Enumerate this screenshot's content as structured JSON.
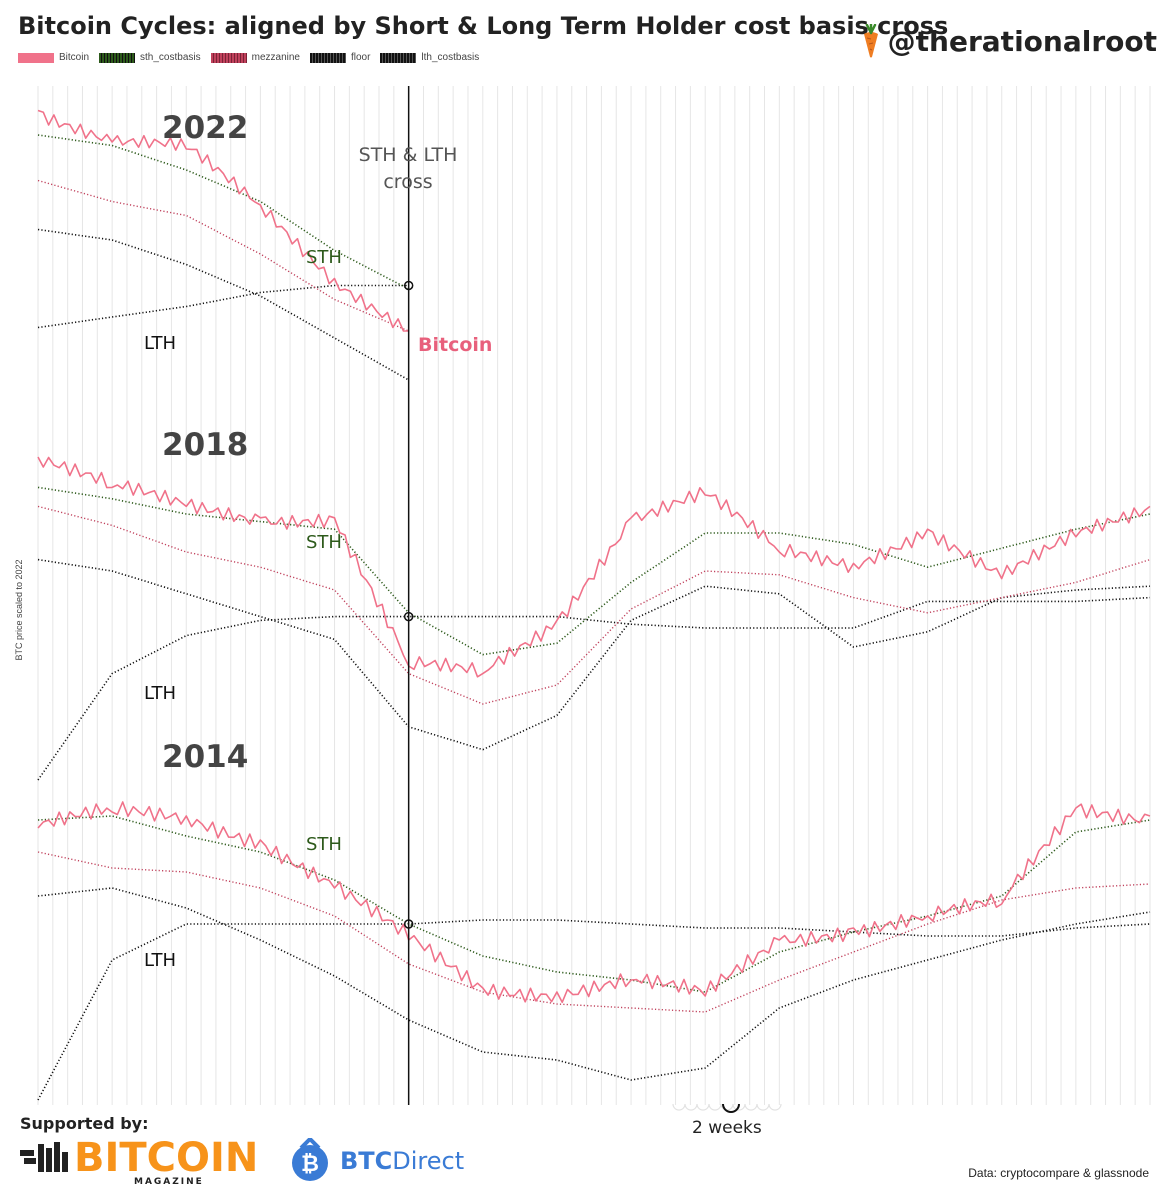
{
  "header": {
    "title": "Bitcoin Cycles: aligned by Short & Long Term Holder cost basis cross",
    "handle": "@therationalroot"
  },
  "legend": [
    {
      "label": "Bitcoin",
      "color": "#f0728a"
    },
    {
      "label": "sth_costbasis",
      "color": "#2d5a1b"
    },
    {
      "label": "mezzanine",
      "color": "#c0415c"
    },
    {
      "label": "floor",
      "color": "#111111"
    },
    {
      "label": "lth_costbasis",
      "color": "#111111"
    }
  ],
  "annotations": {
    "cross_label_line1": "STH & LTH",
    "cross_label_line2": "cross",
    "year_2022": "2022",
    "year_2018": "2018",
    "year_2014": "2014",
    "sth": "STH",
    "lth": "LTH",
    "bitcoin": "Bitcoin",
    "y_axis_label": "BTC price scaled to 2022",
    "grid_note": "2 weeks"
  },
  "footer": {
    "supported_by": "Supported by:",
    "sponsor1_big": "BITCOIN",
    "sponsor1_small": "MAGAZINE",
    "sponsor2_a": "BTC",
    "sponsor2_b": "Direct",
    "source": "Data: cryptocompare & glassnode"
  },
  "chart_data": {
    "type": "line",
    "title": "Bitcoin Cycles: aligned by Short & Long Term Holder cost basis cross",
    "ylabel": "BTC price scaled to 2022",
    "x_unit": "2 weeks",
    "x_range": [
      -25,
      50
    ],
    "cross_at": 0,
    "series_names": [
      "Bitcoin",
      "sth_costbasis",
      "mezzanine",
      "floor",
      "lth_costbasis"
    ],
    "panels": [
      {
        "label": "2022",
        "x": [
          -25,
          -20,
          -15,
          -10,
          -5,
          0
        ],
        "Bitcoin": [
          0.93,
          0.84,
          0.82,
          0.66,
          0.45,
          0.3
        ],
        "sth_costbasis": [
          0.86,
          0.83,
          0.76,
          0.67,
          0.53,
          0.42
        ],
        "mezzanine": [
          0.73,
          0.67,
          0.63,
          0.52,
          0.39,
          0.3
        ],
        "floor": [
          0.59,
          0.56,
          0.49,
          0.4,
          0.28,
          0.16
        ],
        "lth_costbasis": [
          0.31,
          0.34,
          0.37,
          0.41,
          0.43,
          0.43
        ]
      },
      {
        "label": "2018",
        "x": [
          -25,
          -20,
          -15,
          -10,
          -5,
          0,
          5,
          10,
          15,
          20,
          25,
          30,
          35,
          40,
          45,
          50
        ],
        "Bitcoin": [
          0.85,
          0.77,
          0.72,
          0.69,
          0.69,
          0.3,
          0.28,
          0.42,
          0.69,
          0.75,
          0.6,
          0.57,
          0.66,
          0.53,
          0.64,
          0.72
        ],
        "sth_costbasis": [
          0.77,
          0.74,
          0.7,
          0.68,
          0.66,
          0.44,
          0.33,
          0.36,
          0.52,
          0.65,
          0.65,
          0.62,
          0.56,
          0.61,
          0.66,
          0.7
        ],
        "mezzanine": [
          0.72,
          0.67,
          0.6,
          0.56,
          0.5,
          0.28,
          0.2,
          0.25,
          0.45,
          0.55,
          0.54,
          0.48,
          0.44,
          0.48,
          0.52,
          0.58
        ],
        "floor": [
          0.58,
          0.55,
          0.49,
          0.43,
          0.37,
          0.14,
          0.08,
          0.17,
          0.42,
          0.51,
          0.49,
          0.35,
          0.39,
          0.48,
          0.5,
          0.51
        ],
        "lth_costbasis": [
          0.0,
          0.28,
          0.38,
          0.42,
          0.43,
          0.43,
          0.43,
          0.43,
          0.41,
          0.4,
          0.4,
          0.4,
          0.47,
          0.47,
          0.47,
          0.48
        ]
      },
      {
        "label": "2014",
        "x": [
          -25,
          -20,
          -15,
          -10,
          -5,
          0,
          5,
          10,
          15,
          20,
          25,
          30,
          35,
          40,
          45,
          50
        ],
        "Bitcoin": [
          0.68,
          0.72,
          0.71,
          0.65,
          0.53,
          0.4,
          0.28,
          0.27,
          0.3,
          0.26,
          0.4,
          0.43,
          0.46,
          0.49,
          0.73,
          0.71
        ],
        "sth_costbasis": [
          0.7,
          0.71,
          0.66,
          0.62,
          0.55,
          0.44,
          0.36,
          0.32,
          0.3,
          0.27,
          0.37,
          0.42,
          0.46,
          0.51,
          0.67,
          0.7
        ],
        "mezzanine": [
          0.62,
          0.58,
          0.57,
          0.53,
          0.46,
          0.34,
          0.27,
          0.24,
          0.23,
          0.22,
          0.3,
          0.37,
          0.44,
          0.5,
          0.53,
          0.54
        ],
        "floor": [
          0.51,
          0.53,
          0.48,
          0.4,
          0.31,
          0.2,
          0.12,
          0.1,
          0.05,
          0.08,
          0.23,
          0.3,
          0.35,
          0.4,
          0.44,
          0.47
        ],
        "lth_costbasis": [
          0.0,
          0.35,
          0.44,
          0.44,
          0.44,
          0.44,
          0.45,
          0.45,
          0.44,
          0.43,
          0.43,
          0.42,
          0.41,
          0.41,
          0.43,
          0.44
        ]
      }
    ]
  }
}
